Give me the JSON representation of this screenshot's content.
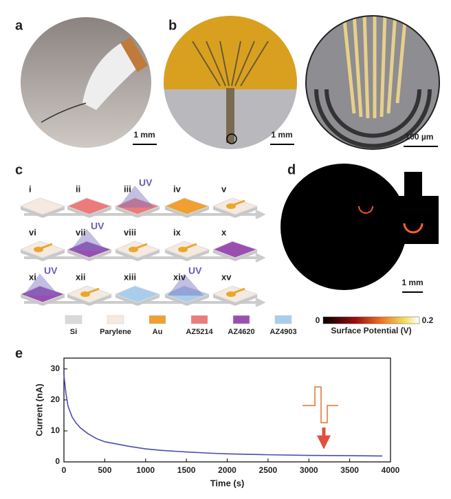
{
  "panels": {
    "a": {
      "label": "a",
      "scale": "1 mm"
    },
    "b": {
      "label": "b",
      "scale": "1 mm",
      "scale_zoom": "100 µm"
    },
    "c": {
      "label": "c",
      "steps": [
        {
          "label": "i"
        },
        {
          "label": "ii"
        },
        {
          "label": "iii",
          "uv": "UV"
        },
        {
          "label": "iv"
        },
        {
          "label": "v"
        },
        {
          "label": "vi"
        },
        {
          "label": "vii",
          "uv": "UV"
        },
        {
          "label": "viii"
        },
        {
          "label": "ix"
        },
        {
          "label": "x"
        },
        {
          "label": "xi",
          "uv": "UV"
        },
        {
          "label": "xii"
        },
        {
          "label": "xiii"
        },
        {
          "label": "xiv",
          "uv": "UV"
        },
        {
          "label": "xv"
        }
      ],
      "legend": [
        {
          "name": "Si",
          "color": "#d9d9d9"
        },
        {
          "name": "Parylene",
          "color": "#f5e9e0"
        },
        {
          "name": "Au",
          "color": "#f0a030"
        },
        {
          "name": "AZ5214",
          "color": "#ec7b7b"
        },
        {
          "name": "AZ4620",
          "color": "#9a4fb0"
        },
        {
          "name": "AZ4903",
          "color": "#a9cdec"
        }
      ]
    },
    "d": {
      "label": "d",
      "scale": "1 mm",
      "colorbar_min": "0",
      "colorbar_max": "0.2",
      "colorbar_title": "Surface Potential (V)"
    },
    "e": {
      "label": "e"
    }
  },
  "chart_data": {
    "type": "line",
    "xlabel": "Time (s)",
    "ylabel": "Current (nA)",
    "x": [
      0,
      25,
      50,
      100,
      150,
      200,
      250,
      300,
      400,
      500,
      600,
      700,
      800,
      1000,
      1200,
      1500,
      1800,
      2000,
      2500,
      3000,
      3500,
      3900
    ],
    "series": [
      {
        "name": "Current",
        "color": "#4b4bb0",
        "values": [
          28,
          22,
          18,
          14.5,
          12.5,
          11,
          10,
          9,
          7.5,
          6.5,
          6,
          5.5,
          5,
          4.2,
          3.7,
          3.2,
          2.8,
          2.6,
          2.3,
          2.1,
          2,
          1.9
        ]
      }
    ],
    "xlim": [
      0,
      4000
    ],
    "ylim": [
      0,
      33.5
    ],
    "xticks": [
      0,
      500,
      1000,
      1500,
      2000,
      2500,
      3000,
      3500,
      4000
    ],
    "yticks": [
      0,
      10,
      20,
      30
    ]
  }
}
